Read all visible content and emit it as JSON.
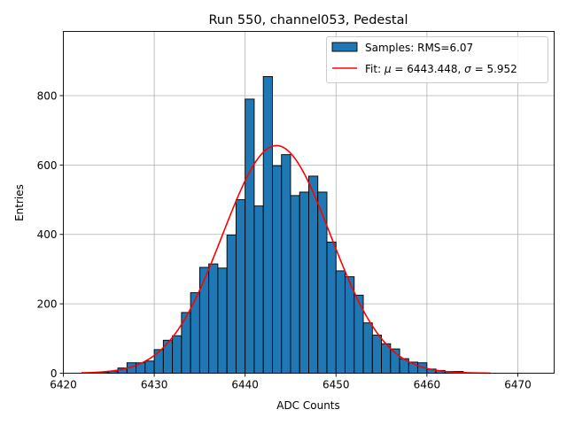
{
  "chart_data": {
    "type": "bar",
    "title": "Run 550, channel053, Pedestal",
    "xlabel": "ADC Counts",
    "ylabel": "Entries",
    "xlim": [
      6420,
      6474
    ],
    "ylim": [
      0,
      985
    ],
    "xticks": [
      6420,
      6430,
      6440,
      6450,
      6460,
      6470
    ],
    "yticks": [
      0,
      200,
      400,
      600,
      800
    ],
    "grid": true,
    "legend_position": "top-right",
    "bin_width": 1,
    "bar_color": "#1f77b4",
    "fit_color": "#ff0000",
    "histogram": {
      "name": "Samples: RMS=6.07",
      "bin_left_edges": [
        6423,
        6424,
        6425,
        6426,
        6427,
        6428,
        6429,
        6430,
        6431,
        6432,
        6433,
        6434,
        6435,
        6436,
        6437,
        6438,
        6439,
        6440,
        6441,
        6442,
        6443,
        6444,
        6445,
        6446,
        6447,
        6448,
        6449,
        6450,
        6451,
        6452,
        6453,
        6454,
        6455,
        6456,
        6457,
        6458,
        6459,
        6460,
        6461,
        6462,
        6463
      ],
      "counts": [
        2,
        3,
        6,
        15,
        30,
        30,
        35,
        68,
        95,
        108,
        175,
        232,
        305,
        315,
        303,
        398,
        500,
        790,
        482,
        855,
        598,
        630,
        512,
        522,
        568,
        522,
        378,
        295,
        278,
        225,
        145,
        110,
        85,
        70,
        42,
        32,
        30,
        12,
        8,
        5,
        5
      ]
    },
    "fit": {
      "name_prefix": "Fit: ",
      "mu_symbol": "μ",
      "mu_value": " = 6443.448, ",
      "sigma_symbol": "σ",
      "sigma_value": " = 5.952",
      "mu": 6443.448,
      "sigma": 5.952,
      "peak": 656,
      "x_range": [
        6422,
        6467
      ]
    }
  }
}
